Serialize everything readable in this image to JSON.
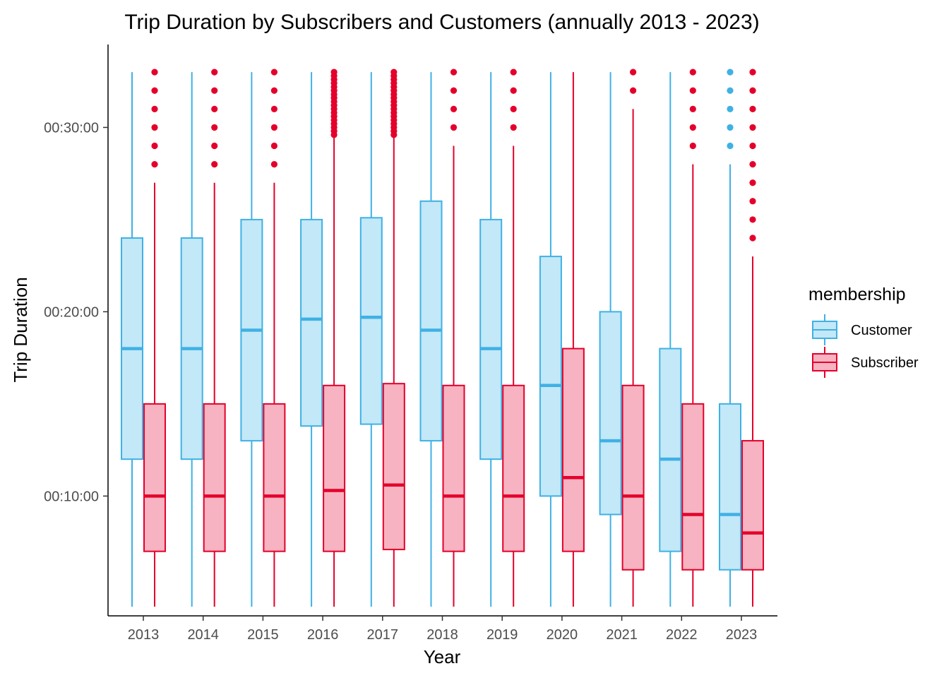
{
  "chart_data": {
    "type": "boxplot",
    "title": "Trip Duration by Subscribers and Customers (annually 2013 - 2023)",
    "xlabel": "Year",
    "ylabel": "Trip Duration",
    "categories": [
      "2013",
      "2014",
      "2015",
      "2016",
      "2017",
      "2018",
      "2019",
      "2020",
      "2021",
      "2022",
      "2023"
    ],
    "y_unit": "minutes",
    "ylim": [
      3.5,
      34.5
    ],
    "y_ticks": [
      10,
      20,
      30
    ],
    "y_tick_labels": [
      "00:10:00",
      "00:20:00",
      "00:30:00"
    ],
    "grid": false,
    "legend": {
      "title": "membership",
      "position": "right"
    },
    "series": [
      {
        "name": "Customer",
        "stroke": "#3FB1E5",
        "fill": "#C3E8F7",
        "boxes": [
          {
            "whisker_low": 4,
            "q1": 12,
            "median": 18,
            "q3": 24,
            "whisker_high": 33,
            "outliers": []
          },
          {
            "whisker_low": 4,
            "q1": 12,
            "median": 18,
            "q3": 24,
            "whisker_high": 33,
            "outliers": []
          },
          {
            "whisker_low": 4,
            "q1": 13,
            "median": 19,
            "q3": 25,
            "whisker_high": 33,
            "outliers": []
          },
          {
            "whisker_low": 4,
            "q1": 13.8,
            "median": 19.6,
            "q3": 25,
            "whisker_high": 33,
            "outliers": []
          },
          {
            "whisker_low": 4,
            "q1": 13.9,
            "median": 19.7,
            "q3": 25.1,
            "whisker_high": 33,
            "outliers": []
          },
          {
            "whisker_low": 4,
            "q1": 13,
            "median": 19,
            "q3": 26,
            "whisker_high": 33,
            "outliers": []
          },
          {
            "whisker_low": 4,
            "q1": 12,
            "median": 18,
            "q3": 25,
            "whisker_high": 33,
            "outliers": []
          },
          {
            "whisker_low": 4,
            "q1": 10,
            "median": 16,
            "q3": 23,
            "whisker_high": 33,
            "outliers": []
          },
          {
            "whisker_low": 4,
            "q1": 9,
            "median": 13,
            "q3": 20,
            "whisker_high": 33,
            "outliers": []
          },
          {
            "whisker_low": 4,
            "q1": 7,
            "median": 12,
            "q3": 18,
            "whisker_high": 33,
            "outliers": []
          },
          {
            "whisker_low": 4,
            "q1": 6,
            "median": 9,
            "q3": 15,
            "whisker_high": 28,
            "outliers": [
              29,
              30,
              31,
              32,
              33
            ]
          }
        ]
      },
      {
        "name": "Subscriber",
        "stroke": "#E4002B",
        "fill": "#F7B3C1",
        "boxes": [
          {
            "whisker_low": 4,
            "q1": 7,
            "median": 10,
            "q3": 15,
            "whisker_high": 27,
            "outliers": [
              28,
              29,
              30,
              31,
              32,
              33
            ]
          },
          {
            "whisker_low": 4,
            "q1": 7,
            "median": 10,
            "q3": 15,
            "whisker_high": 27,
            "outliers": [
              28,
              29,
              30,
              31,
              32,
              33
            ]
          },
          {
            "whisker_low": 4,
            "q1": 7,
            "median": 10,
            "q3": 15,
            "whisker_high": 27,
            "outliers": [
              28,
              29,
              30,
              31,
              32,
              33
            ]
          },
          {
            "whisker_low": 4,
            "q1": 7,
            "median": 10.3,
            "q3": 16,
            "whisker_high": 29.5,
            "outliers": [
              29.6,
              29.8,
              30.0,
              30.2,
              30.4,
              30.6,
              30.8,
              31.0,
              31.2,
              31.4,
              31.6,
              31.8,
              32.0,
              32.2,
              32.4,
              32.6,
              32.8,
              33.0
            ]
          },
          {
            "whisker_low": 4,
            "q1": 7.1,
            "median": 10.6,
            "q3": 16.1,
            "whisker_high": 29.5,
            "outliers": [
              29.6,
              29.8,
              30.0,
              30.2,
              30.4,
              30.6,
              30.8,
              31.0,
              31.2,
              31.4,
              31.6,
              31.8,
              32.0,
              32.2,
              32.4,
              32.6,
              32.8,
              33.0
            ]
          },
          {
            "whisker_low": 4,
            "q1": 7,
            "median": 10,
            "q3": 16,
            "whisker_high": 29,
            "outliers": [
              30,
              31,
              32,
              33
            ]
          },
          {
            "whisker_low": 4,
            "q1": 7,
            "median": 10,
            "q3": 16,
            "whisker_high": 29,
            "outliers": [
              30,
              31,
              32,
              33
            ]
          },
          {
            "whisker_low": 4,
            "q1": 7,
            "median": 11,
            "q3": 18,
            "whisker_high": 33,
            "outliers": []
          },
          {
            "whisker_low": 4,
            "q1": 6,
            "median": 10,
            "q3": 16,
            "whisker_high": 31,
            "outliers": [
              32,
              33
            ]
          },
          {
            "whisker_low": 4,
            "q1": 6,
            "median": 9,
            "q3": 15,
            "whisker_high": 28,
            "outliers": [
              29,
              30,
              31,
              32,
              33
            ]
          },
          {
            "whisker_low": 4,
            "q1": 6,
            "median": 8,
            "q3": 13,
            "whisker_high": 23,
            "outliers": [
              24,
              25,
              26,
              27,
              28,
              29,
              30,
              31,
              32,
              33
            ]
          }
        ]
      }
    ]
  }
}
